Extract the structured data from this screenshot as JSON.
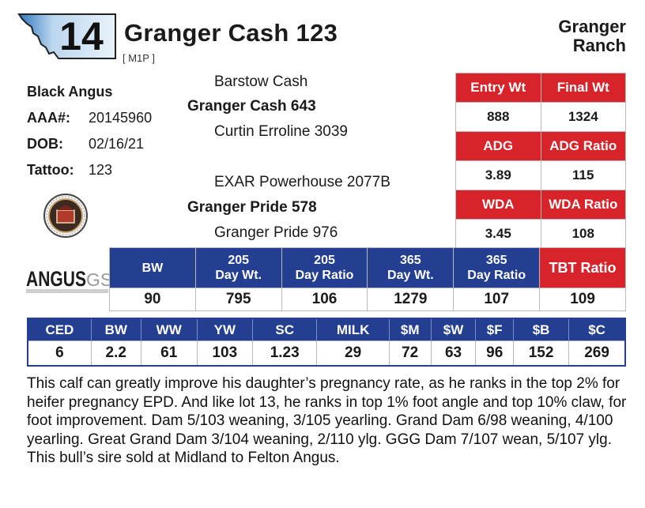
{
  "lot": {
    "number": "14"
  },
  "animal": {
    "name": "Granger Cash 123",
    "code": "[ M1P ]"
  },
  "ranch": {
    "line1": "Granger",
    "line2": "Ranch"
  },
  "info": {
    "breed": "Black Angus",
    "aaa_label": "AAA#:",
    "aaa_value": "20145960",
    "dob_label": "DOB:",
    "dob_value": "02/16/21",
    "tattoo_label": "Tattoo:",
    "tattoo_value": "123"
  },
  "pedigree": {
    "sire_sire": "Barstow Cash",
    "sire": "Granger Cash 643",
    "sire_dam": "Curtin Erroline 3039",
    "dam_sire": "EXAR Powerhouse 2077B",
    "dam": "Granger Pride 578",
    "dam_dam": "Granger Pride 976"
  },
  "performance": {
    "entry_wt_label": "Entry Wt",
    "entry_wt": "888",
    "final_wt_label": "Final Wt",
    "final_wt": "1324",
    "adg_label": "ADG",
    "adg": "3.89",
    "adg_ratio_label": "ADG Ratio",
    "adg_ratio": "115",
    "wda_label": "WDA",
    "wda": "3.45",
    "wda_ratio_label": "WDA Ratio",
    "wda_ratio": "108"
  },
  "weights": {
    "headers": [
      {
        "l1": "BW",
        "l2": ""
      },
      {
        "l1": "205",
        "l2": "Day Wt."
      },
      {
        "l1": "205",
        "l2": "Day Ratio"
      },
      {
        "l1": "365",
        "l2": "Day Wt."
      },
      {
        "l1": "365",
        "l2": "Day Ratio"
      },
      {
        "l1": "TBT Ratio",
        "l2": ""
      }
    ],
    "values": [
      "90",
      "795",
      "106",
      "1279",
      "107",
      "109"
    ]
  },
  "epd": {
    "headers": [
      "CED",
      "BW",
      "WW",
      "YW",
      "SC",
      "MILK",
      "$M",
      "$W",
      "$F",
      "$B",
      "$C"
    ],
    "values": [
      "6",
      "2.2",
      "61",
      "103",
      "1.23",
      "29",
      "72",
      "63",
      "96",
      "152",
      "269"
    ]
  },
  "logo": {
    "text": "ANGUS",
    "suffix": "GS"
  },
  "description": "This calf can greatly improve his daughter’s pregnancy rate, as he ranks in the top 2% for heifer pregnancy EPD. And like lot 13, he ranks in top 1% foot angle and top 10% claw, for foot improvement. Dam 5/103 weaning, 3/105 yearling. Grand Dam 6/98 weaning, 4/100 yearling. Great Grand Dam 3/104 weaning, 2/110 ylg. GGG Dam 7/107 wean, 5/107 ylg. This bull’s sire sold at Midland to Felton Angus.",
  "colors": {
    "red": "#d8232a",
    "blue": "#243e91"
  }
}
